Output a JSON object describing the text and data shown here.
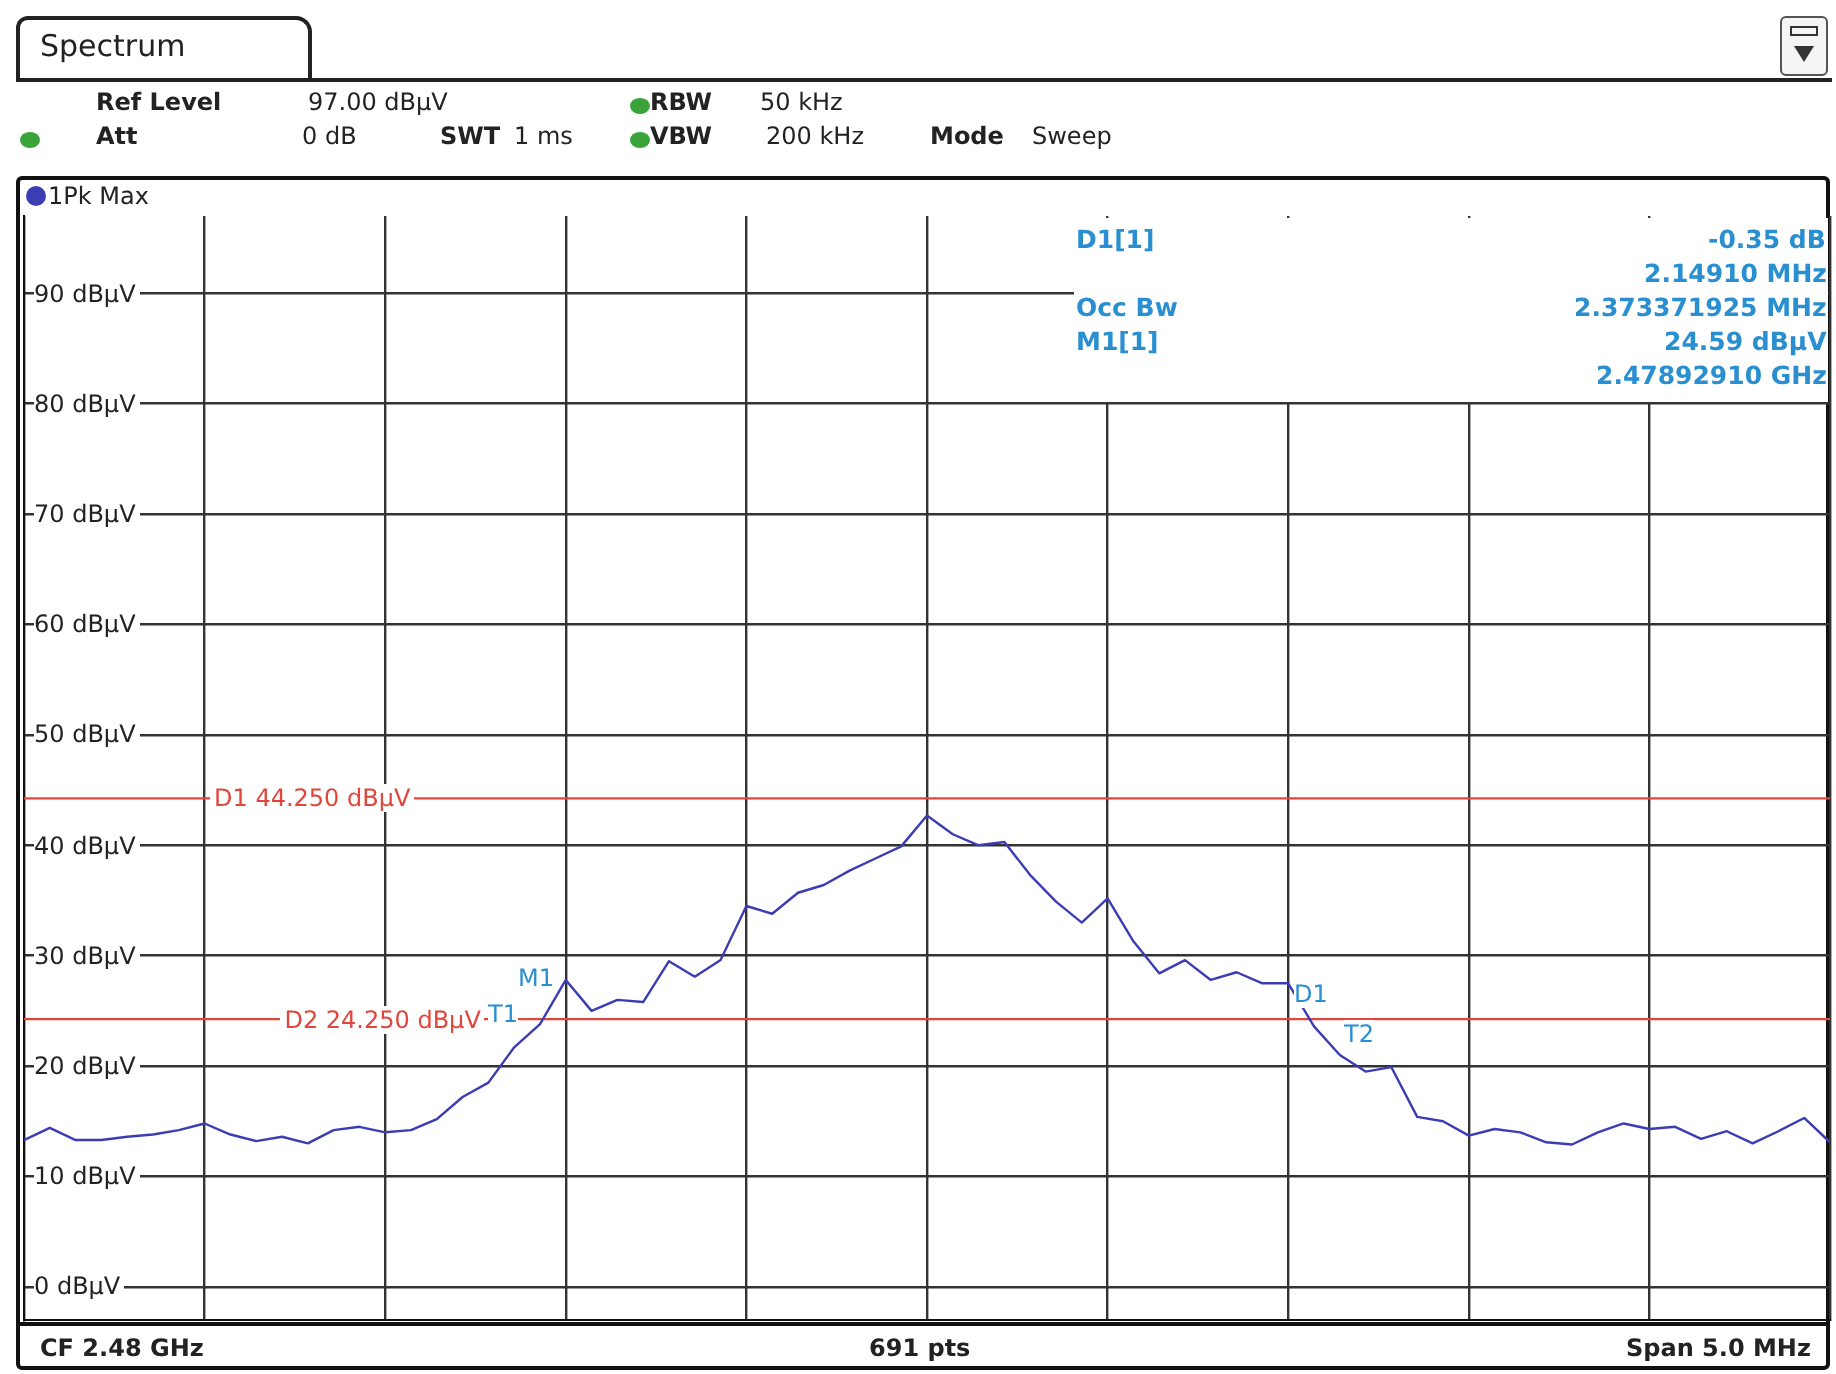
{
  "chart_data": {
    "type": "line",
    "title": "Spectrum",
    "tick_labels": "y",
    "grid": true,
    "legend": "top left",
    "marker": "none",
    "categories": [
      null,
      null,
      null,
      null,
      null,
      null,
      null,
      null,
      null,
      null,
      null,
      null,
      null,
      null,
      null,
      null,
      null,
      null,
      null,
      null,
      null,
      null,
      null,
      null,
      null,
      null,
      null,
      null,
      null,
      null,
      null,
      null,
      null,
      null,
      null,
      null,
      null,
      null,
      null,
      null,
      null,
      null,
      null,
      null,
      null,
      null,
      null,
      null,
      null,
      null,
      null,
      null,
      null,
      null,
      null,
      null,
      null,
      null,
      null,
      null,
      null,
      null,
      null,
      null,
      null,
      null,
      null,
      null,
      null,
      null,
      null
    ],
    "ylim": [
      -3,
      97
    ],
    "yticks": [
      {
        "value": 0,
        "label": "0 dBµV"
      },
      {
        "value": 10,
        "label": "10 dBµV"
      },
      {
        "value": 20,
        "label": "20 dBµV"
      },
      {
        "value": 30,
        "label": "30 dBµV"
      },
      {
        "value": 40,
        "label": "40 dBµV"
      },
      {
        "value": 50,
        "label": "50 dBµV"
      },
      {
        "value": 60,
        "label": "60 dBµV"
      },
      {
        "value": 70,
        "label": "70 dBµV"
      },
      {
        "value": 80,
        "label": "80 dBµV"
      },
      {
        "value": 90,
        "label": "90 dBµV"
      }
    ],
    "series": [
      {
        "name": "1Pk Max",
        "color": "#3c3cb4",
        "values": [
          13.3,
          14.4,
          13.3,
          13.3,
          13.6,
          13.8,
          14.2,
          14.8,
          13.8,
          13.2,
          13.6,
          13.0,
          14.2,
          14.5,
          14.0,
          14.2,
          15.2,
          17.2,
          18.5,
          21.7,
          23.8,
          27.8,
          25.0,
          26.0,
          25.8,
          29.5,
          28.1,
          29.6,
          34.5,
          33.8,
          35.7,
          36.4,
          37.7,
          38.8,
          39.9,
          42.7,
          41.0,
          40.0,
          40.3,
          37.3,
          34.9,
          33.0,
          35.2,
          31.3,
          28.4,
          29.6,
          27.8,
          28.5,
          27.5,
          27.5,
          23.6,
          21.0,
          19.5,
          19.9,
          15.4,
          15.0,
          13.7,
          14.3,
          14.0,
          13.1,
          12.9,
          14.0,
          14.8,
          14.3,
          14.5,
          13.4,
          14.1,
          13.0,
          14.1,
          15.3,
          13.1
        ]
      }
    ],
    "ref_lines": [
      {
        "axis": "y",
        "value": 44.25,
        "label": "D1  44.250 dBµV",
        "color": "#e0463c"
      },
      {
        "axis": "y",
        "value": 24.25,
        "label": "D2  24.250 dBµV",
        "color": "#e0463c"
      }
    ],
    "annotations": [
      "Ref Level",
      "97.00 dBµV",
      "Att",
      "0 dB",
      "SWT",
      "1 ms",
      "RBW",
      "50 kHz",
      "VBW",
      "200 kHz",
      "Mode",
      "Sweep",
      "D1[1]",
      "-0.35 dB",
      "2.14910 MHz",
      "Occ Bw",
      "2.373371925 MHz",
      "M1[1]",
      "24.59 dBµV",
      "2.47892910 GHz",
      "CF 2.48 GHz",
      "691 pts",
      "Span 5.0 MHz",
      "M1",
      "D1",
      "T1",
      "T2"
    ]
  }
}
